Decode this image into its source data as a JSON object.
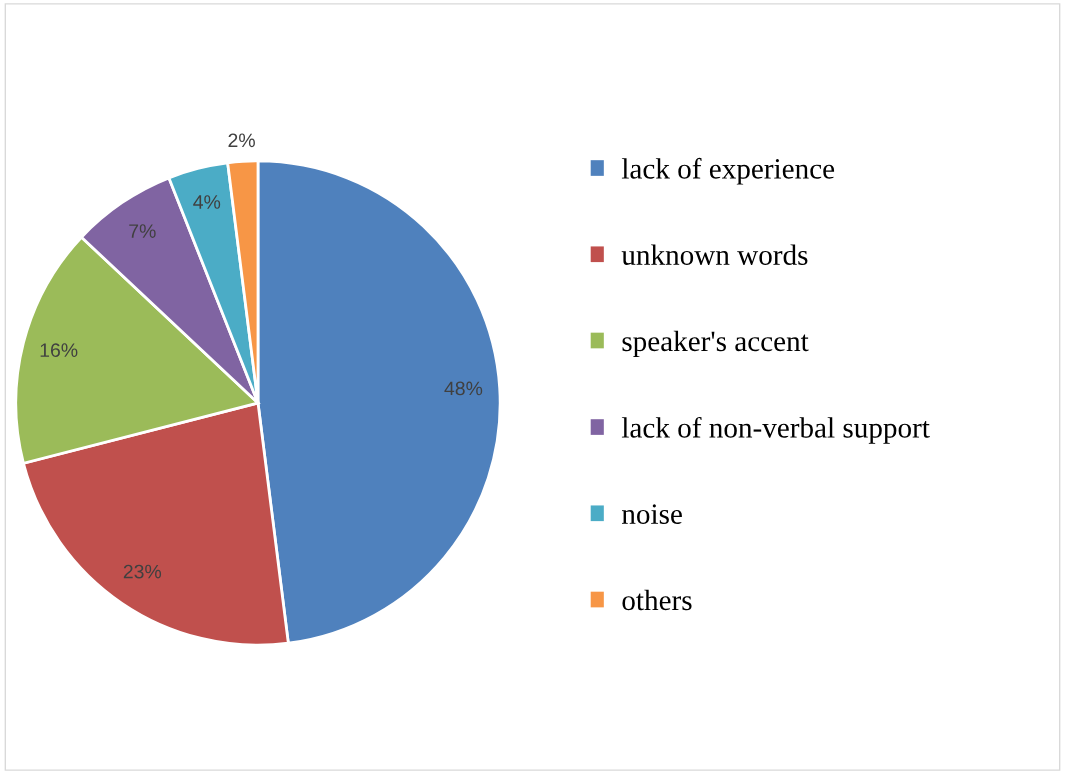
{
  "chart_data": {
    "type": "pie",
    "categories": [
      "lack of experience",
      "unknown words",
      "speaker's accent",
      "lack of non-verbal support",
      "noise",
      "others"
    ],
    "values": [
      48,
      23,
      16,
      7,
      4,
      2
    ],
    "colors": [
      "#4f81bd",
      "#c0504d",
      "#9bbb59",
      "#8064a2",
      "#4bacc6",
      "#f79646"
    ],
    "value_labels": [
      "48%",
      "23%",
      "16%",
      "7%",
      "4%",
      "2%"
    ],
    "legend": "right"
  }
}
